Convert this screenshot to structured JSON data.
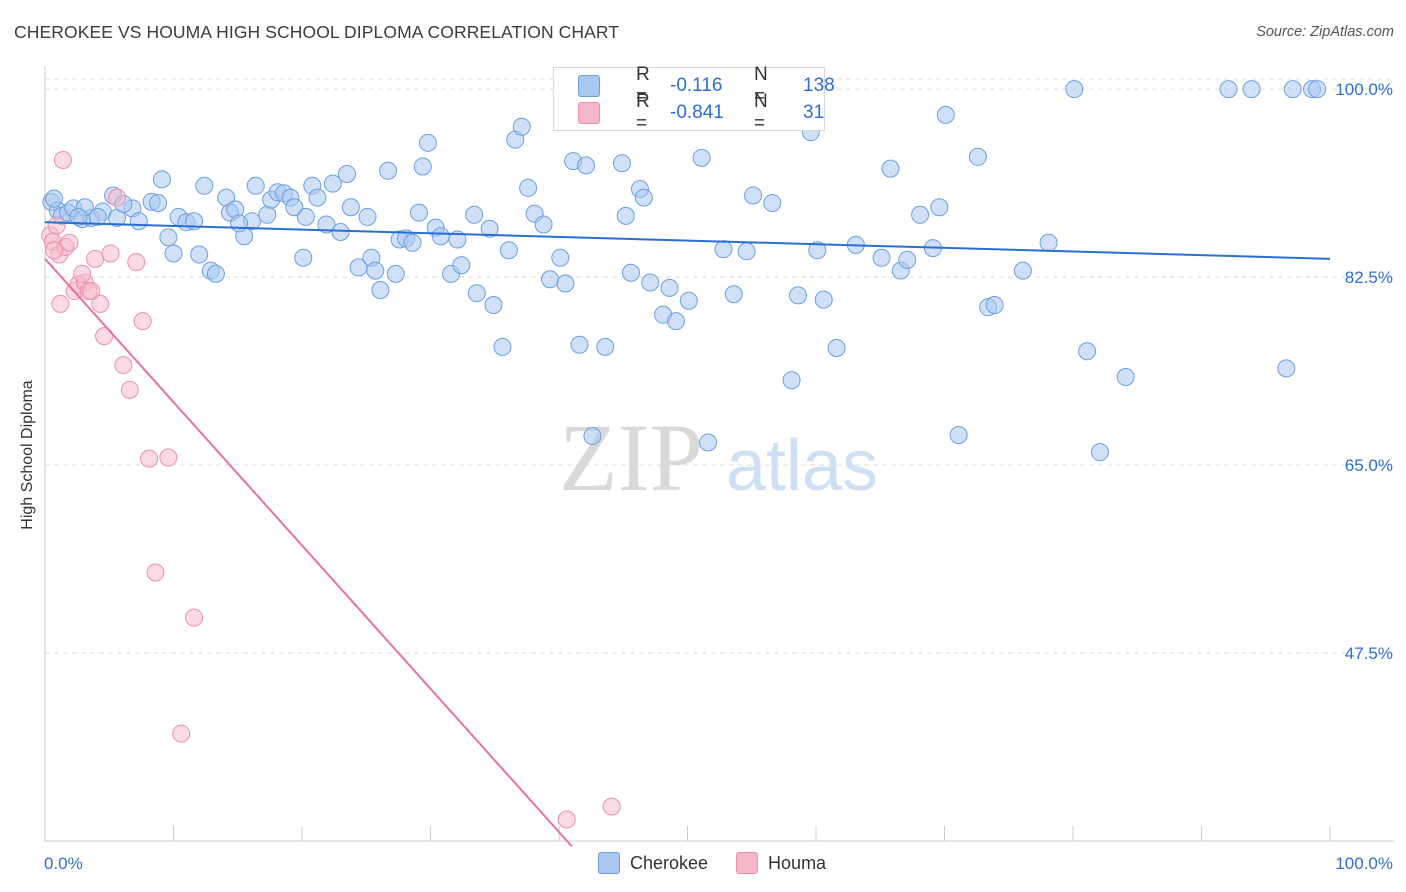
{
  "title": "CHEROKEE VS HOUMA HIGH SCHOOL DIPLOMA CORRELATION CHART",
  "source": "Source: ZipAtlas.com",
  "watermark": {
    "zip": "ZIP",
    "atlas": "atlas"
  },
  "legend": {
    "rows": [
      {
        "r_label": "R =",
        "r_value": "-0.116",
        "n_label": "N =",
        "n_value": "138",
        "color": "#a9c8f0"
      },
      {
        "r_label": "R =",
        "r_value": "-0.841",
        "n_label": "N =",
        "n_value": "31",
        "color": "#f6b7ca"
      }
    ]
  },
  "bottom_legend": {
    "cherokee": "Cherokee",
    "houma": "Houma"
  },
  "colors": {
    "cherokee_fill": "#a9c8f0",
    "cherokee_stroke": "#6c9fe0",
    "cherokee_line": "#2a6fd1",
    "houma_fill": "#f6b7ca",
    "houma_stroke": "#ec8fab",
    "houma_line": "#e8739a",
    "tick_label": "#2f6fd0",
    "grid": "#dddddd"
  },
  "chart_data": {
    "type": "scatter",
    "title": "CHEROKEE VS HOUMA HIGH SCHOOL DIPLOMA CORRELATION CHART",
    "xlabel": "",
    "ylabel": "High School Diploma",
    "xlim": [
      0,
      100
    ],
    "ylim": [
      30,
      101.5
    ],
    "x_tick_labels": [
      "0.0%",
      "100.0%"
    ],
    "y_ticks": [
      {
        "value": 100,
        "label": "100.0%"
      },
      {
        "value": 82.5,
        "label": "82.5%"
      },
      {
        "value": 65,
        "label": "65.0%"
      },
      {
        "value": 47.5,
        "label": "47.5%"
      }
    ],
    "grid": true,
    "legend_placement": "top-center",
    "series": [
      {
        "name": "Cherokee",
        "trend": [
          [
            0,
            87.6
          ],
          [
            100,
            84.2
          ]
        ],
        "points": [
          [
            0.5,
            89.5
          ],
          [
            1.0,
            88.7
          ],
          [
            0.7,
            89.8
          ],
          [
            1.3,
            88.2
          ],
          [
            1.8,
            88.5
          ],
          [
            2.2,
            88.9
          ],
          [
            2.9,
            87.9
          ],
          [
            3.6,
            88.0
          ],
          [
            4.5,
            88.6
          ],
          [
            5.3,
            90.1
          ],
          [
            5.6,
            88.0
          ],
          [
            6.8,
            88.9
          ],
          [
            7.3,
            87.7
          ],
          [
            8.3,
            89.5
          ],
          [
            8.8,
            89.4
          ],
          [
            9.1,
            91.6
          ],
          [
            9.6,
            86.2
          ],
          [
            10.0,
            84.7
          ],
          [
            10.4,
            88.1
          ],
          [
            11.0,
            87.6
          ],
          [
            11.6,
            87.7
          ],
          [
            12.0,
            84.6
          ],
          [
            12.4,
            91.0
          ],
          [
            12.9,
            83.1
          ],
          [
            13.3,
            82.8
          ],
          [
            14.1,
            89.9
          ],
          [
            14.4,
            88.5
          ],
          [
            14.8,
            88.8
          ],
          [
            15.5,
            86.3
          ],
          [
            16.1,
            87.7
          ],
          [
            16.4,
            91.0
          ],
          [
            17.3,
            88.3
          ],
          [
            17.6,
            89.7
          ],
          [
            18.1,
            90.4
          ],
          [
            18.6,
            90.3
          ],
          [
            19.1,
            89.9
          ],
          [
            19.4,
            89.0
          ],
          [
            20.1,
            84.3
          ],
          [
            20.3,
            88.1
          ],
          [
            20.8,
            91.0
          ],
          [
            21.2,
            89.9
          ],
          [
            21.9,
            87.4
          ],
          [
            22.4,
            91.2
          ],
          [
            23.0,
            86.7
          ],
          [
            23.5,
            92.1
          ],
          [
            23.8,
            89.0
          ],
          [
            24.4,
            83.4
          ],
          [
            25.1,
            88.1
          ],
          [
            25.4,
            84.3
          ],
          [
            25.7,
            83.1
          ],
          [
            26.1,
            81.3
          ],
          [
            26.7,
            92.4
          ],
          [
            27.3,
            82.8
          ],
          [
            27.6,
            86.0
          ],
          [
            28.1,
            86.1
          ],
          [
            28.6,
            85.7
          ],
          [
            29.1,
            88.5
          ],
          [
            29.4,
            92.8
          ],
          [
            29.8,
            95.0
          ],
          [
            30.4,
            87.1
          ],
          [
            30.8,
            86.3
          ],
          [
            31.6,
            82.8
          ],
          [
            32.1,
            86.0
          ],
          [
            32.4,
            83.6
          ],
          [
            33.4,
            88.3
          ],
          [
            33.6,
            81.0
          ],
          [
            34.6,
            87.0
          ],
          [
            34.9,
            79.9
          ],
          [
            35.6,
            76.0
          ],
          [
            36.1,
            85.0
          ],
          [
            36.6,
            95.3
          ],
          [
            37.1,
            96.5
          ],
          [
            37.6,
            90.8
          ],
          [
            38.1,
            88.4
          ],
          [
            38.8,
            87.4
          ],
          [
            39.3,
            82.3
          ],
          [
            40.1,
            84.3
          ],
          [
            40.5,
            81.9
          ],
          [
            41.1,
            93.3
          ],
          [
            41.6,
            76.2
          ],
          [
            42.1,
            92.9
          ],
          [
            42.6,
            67.7
          ],
          [
            43.6,
            76.0
          ],
          [
            44.9,
            93.1
          ],
          [
            45.2,
            88.2
          ],
          [
            45.6,
            82.9
          ],
          [
            46.3,
            90.7
          ],
          [
            46.6,
            89.9
          ],
          [
            47.1,
            82.0
          ],
          [
            47.6,
            97.5
          ],
          [
            48.1,
            79.0
          ],
          [
            48.6,
            81.5
          ],
          [
            49.1,
            78.4
          ],
          [
            50.1,
            80.3
          ],
          [
            50.3,
            100.0
          ],
          [
            51.1,
            93.6
          ],
          [
            51.6,
            67.1
          ],
          [
            52.8,
            85.1
          ],
          [
            53.6,
            80.9
          ],
          [
            55.1,
            90.1
          ],
          [
            56.6,
            89.4
          ],
          [
            58.1,
            72.9
          ],
          [
            58.6,
            80.8
          ],
          [
            59.6,
            96.0
          ],
          [
            60.1,
            85.0
          ],
          [
            61.6,
            75.9
          ],
          [
            63.1,
            85.5
          ],
          [
            65.1,
            84.3
          ],
          [
            65.8,
            92.6
          ],
          [
            66.6,
            83.1
          ],
          [
            67.1,
            84.1
          ],
          [
            68.1,
            88.3
          ],
          [
            69.1,
            85.2
          ],
          [
            69.6,
            89.0
          ],
          [
            70.1,
            97.6
          ],
          [
            71.1,
            67.8
          ],
          [
            72.6,
            93.7
          ],
          [
            73.4,
            79.7
          ],
          [
            73.9,
            79.9
          ],
          [
            76.1,
            83.1
          ],
          [
            78.1,
            85.7
          ],
          [
            80.1,
            100.0
          ],
          [
            81.1,
            75.6
          ],
          [
            82.1,
            66.2
          ],
          [
            84.1,
            73.2
          ],
          [
            92.1,
            100.0
          ],
          [
            93.9,
            100.0
          ],
          [
            97.1,
            100.0
          ],
          [
            98.6,
            100.0
          ],
          [
            99.0,
            100.0
          ],
          [
            96.6,
            74.0
          ],
          [
            15.1,
            87.5
          ],
          [
            6.1,
            89.3
          ],
          [
            3.1,
            89.0
          ],
          [
            2.6,
            88.1
          ],
          [
            4.1,
            88.1
          ],
          [
            60.6,
            80.4
          ],
          [
            54.6,
            84.9
          ]
        ]
      },
      {
        "name": "Houma",
        "trend": [
          [
            0,
            84.2
          ],
          [
            41,
            29.5
          ]
        ],
        "points": [
          [
            0.4,
            86.4
          ],
          [
            0.6,
            85.8
          ],
          [
            1.1,
            84.6
          ],
          [
            1.6,
            85.3
          ],
          [
            1.9,
            85.7
          ],
          [
            1.4,
            93.4
          ],
          [
            2.3,
            81.2
          ],
          [
            2.6,
            81.8
          ],
          [
            3.1,
            82.0
          ],
          [
            3.4,
            81.2
          ],
          [
            3.9,
            84.2
          ],
          [
            4.3,
            80.0
          ],
          [
            4.6,
            77.0
          ],
          [
            5.1,
            84.7
          ],
          [
            5.6,
            89.9
          ],
          [
            6.1,
            74.3
          ],
          [
            6.6,
            72.0
          ],
          [
            7.1,
            83.9
          ],
          [
            7.6,
            78.4
          ],
          [
            8.1,
            65.6
          ],
          [
            8.6,
            55.0
          ],
          [
            9.6,
            65.7
          ],
          [
            10.6,
            40.0
          ],
          [
            11.6,
            50.8
          ],
          [
            1.2,
            80.0
          ],
          [
            0.9,
            87.3
          ],
          [
            2.9,
            82.8
          ],
          [
            3.6,
            81.2
          ],
          [
            40.6,
            32.0
          ],
          [
            44.1,
            33.2
          ],
          [
            0.7,
            85.0
          ]
        ]
      }
    ]
  }
}
